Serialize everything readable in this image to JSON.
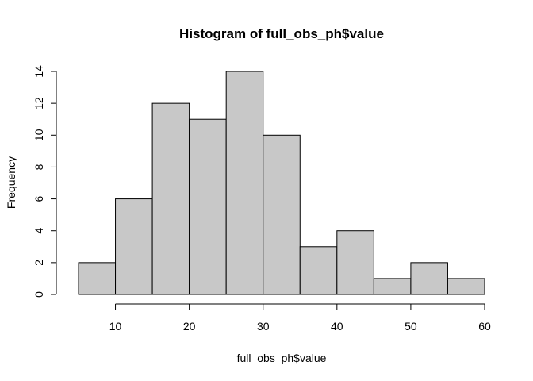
{
  "chart_data": {
    "type": "bar",
    "title": "Histogram of full_obs_ph$value",
    "xlabel": "full_obs_ph$value",
    "ylabel": "Frequency",
    "bins": [
      {
        "start": 5,
        "end": 10,
        "count": 2
      },
      {
        "start": 10,
        "end": 15,
        "count": 6
      },
      {
        "start": 15,
        "end": 20,
        "count": 12
      },
      {
        "start": 20,
        "end": 25,
        "count": 11
      },
      {
        "start": 25,
        "end": 30,
        "count": 14
      },
      {
        "start": 30,
        "end": 35,
        "count": 10
      },
      {
        "start": 35,
        "end": 40,
        "count": 3
      },
      {
        "start": 40,
        "end": 45,
        "count": 4
      },
      {
        "start": 45,
        "end": 50,
        "count": 1
      },
      {
        "start": 50,
        "end": 55,
        "count": 2
      },
      {
        "start": 55,
        "end": 60,
        "count": 1
      }
    ],
    "xticks": [
      10,
      20,
      30,
      40,
      50,
      60
    ],
    "yticks": [
      0,
      2,
      4,
      6,
      8,
      10,
      12,
      14
    ],
    "xlim": [
      5,
      60
    ],
    "ylim": [
      0,
      14
    ],
    "bar_color": "#c8c8c8",
    "grid": false
  }
}
